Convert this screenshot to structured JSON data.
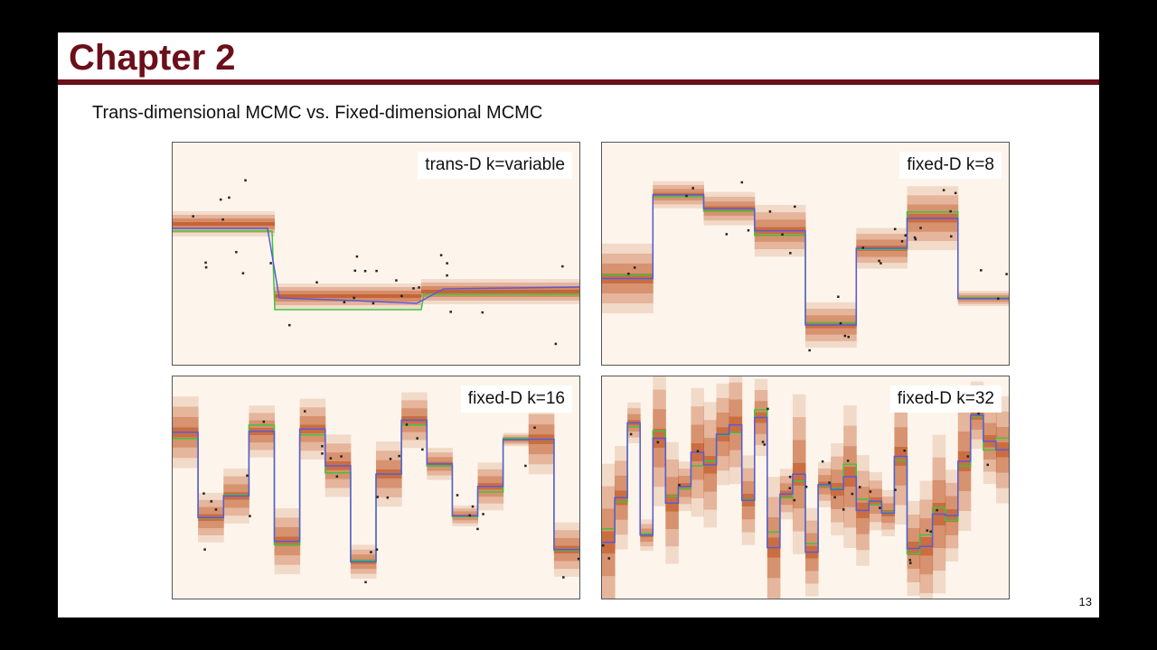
{
  "slide": {
    "title": "Chapter 2",
    "subtitle": "Trans-dimensional MCMC vs. Fixed-dimensional MCMC",
    "page_number": "13"
  },
  "colors": {
    "title": "#6b0f1a",
    "density_dark": "#b8400a",
    "mean_line": "#5a5ad8",
    "true_line": "#3ec43e",
    "points": "#222222"
  },
  "panels": [
    {
      "label": "trans-D k=variable"
    },
    {
      "label": "fixed-D k=8"
    },
    {
      "label": "fixed-D k=16"
    },
    {
      "label": "fixed-D k=32"
    }
  ]
}
